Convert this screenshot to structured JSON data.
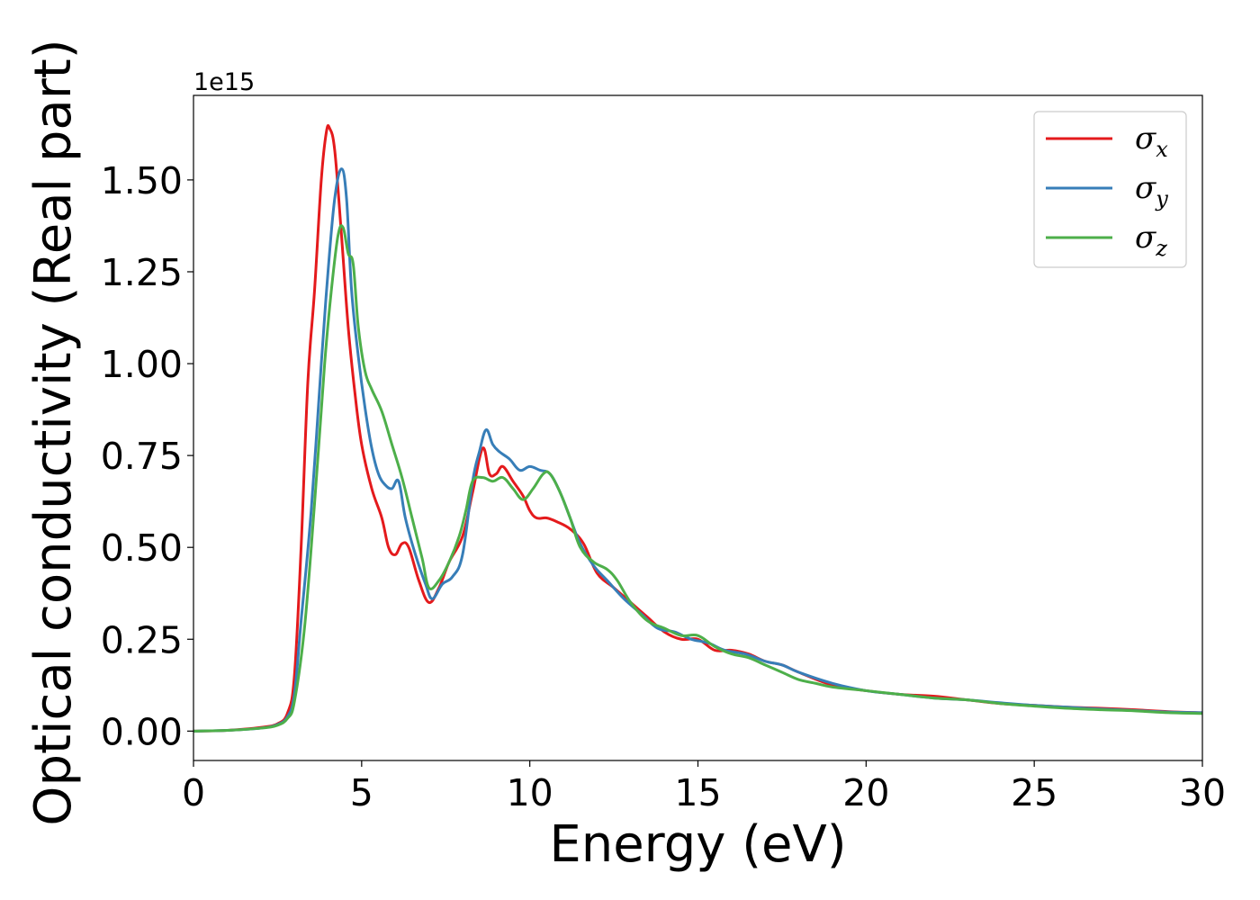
{
  "chart_data": {
    "type": "line",
    "xlabel": "Energy (eV)",
    "ylabel": "Optical conductivity (Real part)",
    "y_offset_text": "1e15",
    "xlim": [
      0,
      30
    ],
    "ylim": [
      -0.08,
      1.73
    ],
    "y_scale_factor": 1000000000000000.0,
    "xticks": [
      0,
      5,
      10,
      15,
      20,
      25,
      30
    ],
    "xtick_labels": [
      "0",
      "5",
      "10",
      "15",
      "20",
      "25",
      "30"
    ],
    "yticks": [
      0.0,
      0.25,
      0.5,
      0.75,
      1.0,
      1.25,
      1.5
    ],
    "ytick_labels": [
      "0.00",
      "0.25",
      "0.50",
      "0.75",
      "1.00",
      "1.25",
      "1.50"
    ],
    "grid": false,
    "legend_position": "top-right",
    "series": [
      {
        "name": "σx",
        "legend_symbol": "σ",
        "legend_sub": "x",
        "color": "#e41a1c",
        "points": [
          [
            0,
            0.0
          ],
          [
            1,
            0.002
          ],
          [
            2,
            0.01
          ],
          [
            2.5,
            0.02
          ],
          [
            2.8,
            0.05
          ],
          [
            3.0,
            0.15
          ],
          [
            3.2,
            0.5
          ],
          [
            3.4,
            0.95
          ],
          [
            3.6,
            1.2
          ],
          [
            3.8,
            1.5
          ],
          [
            3.95,
            1.63
          ],
          [
            4.05,
            1.64
          ],
          [
            4.2,
            1.58
          ],
          [
            4.4,
            1.35
          ],
          [
            4.6,
            1.1
          ],
          [
            4.8,
            0.92
          ],
          [
            5.0,
            0.78
          ],
          [
            5.3,
            0.66
          ],
          [
            5.6,
            0.58
          ],
          [
            5.8,
            0.5
          ],
          [
            6.0,
            0.48
          ],
          [
            6.2,
            0.51
          ],
          [
            6.4,
            0.5
          ],
          [
            6.7,
            0.41
          ],
          [
            7.0,
            0.35
          ],
          [
            7.3,
            0.39
          ],
          [
            7.6,
            0.46
          ],
          [
            8.0,
            0.53
          ],
          [
            8.3,
            0.65
          ],
          [
            8.6,
            0.77
          ],
          [
            8.8,
            0.7
          ],
          [
            9.0,
            0.7
          ],
          [
            9.2,
            0.72
          ],
          [
            9.5,
            0.68
          ],
          [
            9.8,
            0.64
          ],
          [
            10.0,
            0.6
          ],
          [
            10.2,
            0.58
          ],
          [
            10.5,
            0.58
          ],
          [
            10.8,
            0.57
          ],
          [
            11.2,
            0.55
          ],
          [
            11.6,
            0.51
          ],
          [
            12.0,
            0.43
          ],
          [
            12.5,
            0.39
          ],
          [
            13.0,
            0.35
          ],
          [
            13.5,
            0.31
          ],
          [
            14.0,
            0.27
          ],
          [
            14.5,
            0.25
          ],
          [
            15.0,
            0.25
          ],
          [
            15.5,
            0.22
          ],
          [
            16.0,
            0.22
          ],
          [
            16.5,
            0.21
          ],
          [
            17.0,
            0.19
          ],
          [
            17.5,
            0.18
          ],
          [
            18.0,
            0.16
          ],
          [
            19.0,
            0.125
          ],
          [
            20.0,
            0.11
          ],
          [
            21.0,
            0.1
          ],
          [
            22.0,
            0.095
          ],
          [
            23.0,
            0.085
          ],
          [
            24.0,
            0.075
          ],
          [
            25.0,
            0.07
          ],
          [
            26.0,
            0.065
          ],
          [
            27.0,
            0.062
          ],
          [
            28.0,
            0.058
          ],
          [
            29.0,
            0.053
          ],
          [
            30.0,
            0.05
          ]
        ]
      },
      {
        "name": "σy",
        "legend_symbol": "σ",
        "legend_sub": "y",
        "color": "#377eb8",
        "points": [
          [
            0,
            0.0
          ],
          [
            1,
            0.002
          ],
          [
            2,
            0.008
          ],
          [
            2.5,
            0.018
          ],
          [
            2.8,
            0.04
          ],
          [
            3.0,
            0.1
          ],
          [
            3.2,
            0.3
          ],
          [
            3.5,
            0.6
          ],
          [
            3.8,
            1.0
          ],
          [
            4.0,
            1.25
          ],
          [
            4.2,
            1.45
          ],
          [
            4.4,
            1.53
          ],
          [
            4.55,
            1.45
          ],
          [
            4.7,
            1.2
          ],
          [
            4.9,
            1.02
          ],
          [
            5.1,
            0.88
          ],
          [
            5.3,
            0.77
          ],
          [
            5.5,
            0.7
          ],
          [
            5.7,
            0.67
          ],
          [
            5.9,
            0.66
          ],
          [
            6.1,
            0.68
          ],
          [
            6.3,
            0.58
          ],
          [
            6.6,
            0.48
          ],
          [
            6.9,
            0.4
          ],
          [
            7.1,
            0.36
          ],
          [
            7.4,
            0.4
          ],
          [
            7.7,
            0.42
          ],
          [
            8.0,
            0.48
          ],
          [
            8.3,
            0.68
          ],
          [
            8.5,
            0.76
          ],
          [
            8.7,
            0.82
          ],
          [
            8.9,
            0.78
          ],
          [
            9.1,
            0.76
          ],
          [
            9.4,
            0.74
          ],
          [
            9.7,
            0.71
          ],
          [
            10.0,
            0.72
          ],
          [
            10.3,
            0.71
          ],
          [
            10.6,
            0.7
          ],
          [
            10.9,
            0.65
          ],
          [
            11.2,
            0.58
          ],
          [
            11.5,
            0.51
          ],
          [
            11.9,
            0.45
          ],
          [
            12.3,
            0.41
          ],
          [
            12.8,
            0.36
          ],
          [
            13.3,
            0.32
          ],
          [
            13.8,
            0.28
          ],
          [
            14.3,
            0.27
          ],
          [
            14.8,
            0.25
          ],
          [
            15.3,
            0.24
          ],
          [
            15.8,
            0.22
          ],
          [
            16.4,
            0.21
          ],
          [
            17.0,
            0.19
          ],
          [
            17.5,
            0.18
          ],
          [
            18.0,
            0.16
          ],
          [
            19.0,
            0.13
          ],
          [
            20.0,
            0.11
          ],
          [
            21.0,
            0.1
          ],
          [
            22.0,
            0.09
          ],
          [
            23.0,
            0.085
          ],
          [
            24.0,
            0.077
          ],
          [
            25.0,
            0.07
          ],
          [
            26.0,
            0.065
          ],
          [
            27.0,
            0.06
          ],
          [
            28.0,
            0.056
          ],
          [
            29.0,
            0.052
          ],
          [
            30.0,
            0.05
          ]
        ]
      },
      {
        "name": "σz",
        "legend_symbol": "σ",
        "legend_sub": "z",
        "color": "#4daf4a",
        "points": [
          [
            0,
            0.0
          ],
          [
            1,
            0.002
          ],
          [
            2,
            0.008
          ],
          [
            2.5,
            0.016
          ],
          [
            2.8,
            0.035
          ],
          [
            3.0,
            0.08
          ],
          [
            3.3,
            0.28
          ],
          [
            3.6,
            0.62
          ],
          [
            3.9,
            1.0
          ],
          [
            4.1,
            1.2
          ],
          [
            4.3,
            1.35
          ],
          [
            4.45,
            1.37
          ],
          [
            4.6,
            1.3
          ],
          [
            4.75,
            1.27
          ],
          [
            4.9,
            1.1
          ],
          [
            5.1,
            0.98
          ],
          [
            5.3,
            0.93
          ],
          [
            5.6,
            0.87
          ],
          [
            5.9,
            0.78
          ],
          [
            6.2,
            0.69
          ],
          [
            6.5,
            0.58
          ],
          [
            6.8,
            0.47
          ],
          [
            7.0,
            0.39
          ],
          [
            7.3,
            0.41
          ],
          [
            7.6,
            0.46
          ],
          [
            7.9,
            0.53
          ],
          [
            8.1,
            0.6
          ],
          [
            8.3,
            0.68
          ],
          [
            8.6,
            0.69
          ],
          [
            8.9,
            0.68
          ],
          [
            9.2,
            0.69
          ],
          [
            9.5,
            0.66
          ],
          [
            9.8,
            0.63
          ],
          [
            10.1,
            0.66
          ],
          [
            10.4,
            0.7
          ],
          [
            10.6,
            0.7
          ],
          [
            10.9,
            0.65
          ],
          [
            11.2,
            0.58
          ],
          [
            11.5,
            0.5
          ],
          [
            11.9,
            0.46
          ],
          [
            12.3,
            0.44
          ],
          [
            12.6,
            0.41
          ],
          [
            13.0,
            0.35
          ],
          [
            13.5,
            0.3
          ],
          [
            14.0,
            0.28
          ],
          [
            14.5,
            0.26
          ],
          [
            15.0,
            0.26
          ],
          [
            15.5,
            0.23
          ],
          [
            16.0,
            0.21
          ],
          [
            16.5,
            0.2
          ],
          [
            17.0,
            0.18
          ],
          [
            17.5,
            0.16
          ],
          [
            18.0,
            0.14
          ],
          [
            18.5,
            0.13
          ],
          [
            19.0,
            0.12
          ],
          [
            20.0,
            0.11
          ],
          [
            21.0,
            0.1
          ],
          [
            22.0,
            0.09
          ],
          [
            23.0,
            0.085
          ],
          [
            24.0,
            0.075
          ],
          [
            25.0,
            0.068
          ],
          [
            26.0,
            0.062
          ],
          [
            27.0,
            0.058
          ],
          [
            28.0,
            0.055
          ],
          [
            29.0,
            0.05
          ],
          [
            30.0,
            0.048
          ]
        ]
      }
    ]
  }
}
